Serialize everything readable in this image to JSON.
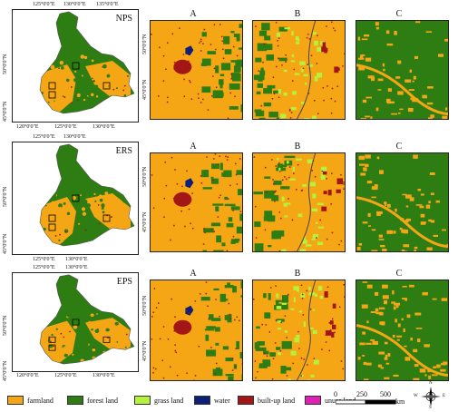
{
  "rows": [
    {
      "scenario": "NPS",
      "top_lon": [
        "125°0'0\"E",
        "130°0'0\"E",
        "135°0'0\"E"
      ],
      "bottom_lon": [
        "120°0'0\"E",
        "125°0'0\"E",
        "130°0'0\"E"
      ],
      "lat": [
        "50°0'0\"N",
        "45°0'0\"N"
      ],
      "panel_lat": [
        "50°0'0\"N",
        "45°0'0\"N"
      ]
    },
    {
      "scenario": "ERS",
      "top_lon": [
        "125°0'0\"E",
        "130°0'0\"E"
      ],
      "bottom_lon": [
        "125°0'0\"E",
        "130°0'0\"E"
      ],
      "lat": [
        "50°0'0\"N",
        "45°0'0\"N"
      ],
      "panel_lat": [
        "50°0'0\"N",
        "45°0'0\"N"
      ]
    },
    {
      "scenario": "EPS",
      "top_lon": [
        "125°0'0\"E",
        "130°0'0\"E"
      ],
      "bottom_lon": [
        "120°0'0\"E",
        "125°0'0\"E",
        "130°0'0\"E"
      ],
      "lat": [
        "50°0'0\"N",
        "45°0'0\"N"
      ],
      "panel_lat": [
        "50°0'0\"N",
        "45°0'0\"N"
      ]
    }
  ],
  "panel_labels": [
    "A",
    "B",
    "C"
  ],
  "legend": [
    {
      "label": "farmland",
      "color": "#f5a614"
    },
    {
      "label": "forest land",
      "color": "#2e7d12"
    },
    {
      "label": "grass land",
      "color": "#b6f23c"
    },
    {
      "label": "water",
      "color": "#0d1f7a"
    },
    {
      "label": "built-up land",
      "color": "#a31616"
    },
    {
      "label": "unuse land",
      "color": "#e21fb5"
    }
  ],
  "scale": {
    "ticks": [
      "0",
      "250",
      "500"
    ],
    "unit": "km"
  },
  "north": {
    "n": "N",
    "s": "S",
    "e": "E",
    "w": "W"
  }
}
